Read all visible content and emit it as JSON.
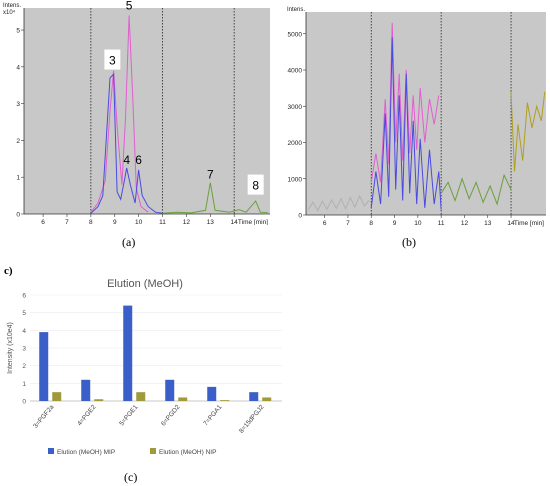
{
  "chart_data": [
    {
      "panel": "(a)",
      "type": "line",
      "y_unit_label": "Intens.",
      "y_scale_label": "x10⁴",
      "y_ticks": [
        0,
        1,
        2,
        3,
        4,
        5
      ],
      "ylim": [
        0,
        5.6
      ],
      "x_tick_labels": [
        "6",
        "7",
        "8",
        "9",
        "10",
        "11",
        "12",
        "13",
        "14"
      ],
      "x_axis_label": "Time [min]",
      "xlim": [
        5.2,
        15.5
      ],
      "grid_dividers_x": [
        8,
        11,
        14
      ],
      "peak_labels": [
        {
          "label": "3",
          "x": 8.9,
          "y": 3.9,
          "boxed": true
        },
        {
          "label": "5",
          "x": 9.6,
          "y": 5.4,
          "boxed": false
        },
        {
          "label": "4",
          "x": 9.5,
          "y": 1.2,
          "boxed": false
        },
        {
          "label": "6",
          "x": 10.0,
          "y": 1.2,
          "boxed": false
        },
        {
          "label": "7",
          "x": 13.0,
          "y": 0.8,
          "boxed": false
        },
        {
          "label": "8",
          "x": 14.9,
          "y": 0.5,
          "boxed": true
        }
      ],
      "series": [
        {
          "color": "#e05fd0",
          "points": [
            [
              8.0,
              0.05
            ],
            [
              8.3,
              0.3
            ],
            [
              8.6,
              0.9
            ],
            [
              8.8,
              2.8
            ],
            [
              8.95,
              3.9
            ],
            [
              9.1,
              2.4
            ],
            [
              9.3,
              0.8
            ],
            [
              9.45,
              2.6
            ],
            [
              9.6,
              5.4
            ],
            [
              9.75,
              3.2
            ],
            [
              9.9,
              0.7
            ],
            [
              10.1,
              0.2
            ],
            [
              10.4,
              0.05
            ]
          ]
        },
        {
          "color": "#4a4ae0",
          "points": [
            [
              8.0,
              0.02
            ],
            [
              8.3,
              0.2
            ],
            [
              8.5,
              0.5
            ],
            [
              8.8,
              3.7
            ],
            [
              8.95,
              3.8
            ],
            [
              9.1,
              0.6
            ],
            [
              9.25,
              0.4
            ],
            [
              9.4,
              0.9
            ],
            [
              9.5,
              1.25
            ],
            [
              9.65,
              0.8
            ],
            [
              9.85,
              0.3
            ],
            [
              10.0,
              1.2
            ],
            [
              10.15,
              0.5
            ],
            [
              10.4,
              0.2
            ],
            [
              10.7,
              0.05
            ],
            [
              11.0,
              0.02
            ]
          ]
        },
        {
          "color": "#6aa03c",
          "points": [
            [
              11.0,
              0.02
            ],
            [
              11.6,
              0.05
            ],
            [
              12.2,
              0.03
            ],
            [
              12.8,
              0.1
            ],
            [
              13.0,
              0.85
            ],
            [
              13.2,
              0.1
            ],
            [
              13.8,
              0.05
            ],
            [
              14.2,
              0.12
            ],
            [
              14.5,
              0.05
            ],
            [
              14.9,
              0.35
            ],
            [
              15.1,
              0.05
            ],
            [
              15.4,
              0.04
            ]
          ]
        }
      ]
    },
    {
      "panel": "(b)",
      "type": "line",
      "y_unit_label": "Intens.",
      "y_ticks": [
        0,
        1000,
        2000,
        3000,
        4000,
        5000
      ],
      "ylim": [
        0,
        5600
      ],
      "x_tick_labels": [
        "6",
        "7",
        "8",
        "9",
        "10",
        "11",
        "12",
        "13",
        "14"
      ],
      "x_axis_label": "Time [min]",
      "xlim": [
        5.2,
        15.5
      ],
      "grid_dividers_x": [
        8,
        11,
        14
      ],
      "series": [
        {
          "color": "#b0b0b0",
          "points": [
            [
              5.3,
              150
            ],
            [
              5.5,
              350
            ],
            [
              5.7,
              120
            ],
            [
              5.9,
              380
            ],
            [
              6.1,
              160
            ],
            [
              6.3,
              420
            ],
            [
              6.5,
              180
            ],
            [
              6.7,
              450
            ],
            [
              6.9,
              170
            ],
            [
              7.1,
              480
            ],
            [
              7.3,
              220
            ],
            [
              7.5,
              530
            ],
            [
              7.7,
              250
            ],
            [
              7.9,
              400
            ]
          ]
        },
        {
          "color": "#e05fd0",
          "points": [
            [
              8.0,
              900
            ],
            [
              8.2,
              1700
            ],
            [
              8.4,
              900
            ],
            [
              8.6,
              3200
            ],
            [
              8.75,
              1400
            ],
            [
              8.9,
              5300
            ],
            [
              9.05,
              2000
            ],
            [
              9.2,
              3900
            ],
            [
              9.35,
              1500
            ],
            [
              9.5,
              4000
            ],
            [
              9.65,
              1700
            ],
            [
              9.8,
              3300
            ],
            [
              9.95,
              1800
            ],
            [
              10.1,
              3500
            ],
            [
              10.3,
              2000
            ],
            [
              10.5,
              3200
            ],
            [
              10.7,
              2500
            ],
            [
              10.9,
              3300
            ]
          ]
        },
        {
          "color": "#4a4ae0",
          "points": [
            [
              8.0,
              200
            ],
            [
              8.2,
              1200
            ],
            [
              8.4,
              300
            ],
            [
              8.6,
              2800
            ],
            [
              8.75,
              500
            ],
            [
              8.9,
              4900
            ],
            [
              9.05,
              700
            ],
            [
              9.2,
              3300
            ],
            [
              9.35,
              400
            ],
            [
              9.5,
              3900
            ],
            [
              9.65,
              600
            ],
            [
              9.8,
              2600
            ],
            [
              9.95,
              300
            ],
            [
              10.1,
              2100
            ],
            [
              10.3,
              200
            ],
            [
              10.5,
              1800
            ],
            [
              10.7,
              300
            ],
            [
              10.9,
              1200
            ],
            [
              11.0,
              150
            ]
          ]
        },
        {
          "color": "#6aa03c",
          "points": [
            [
              11.0,
              600
            ],
            [
              11.3,
              900
            ],
            [
              11.6,
              400
            ],
            [
              11.9,
              1000
            ],
            [
              12.2,
              450
            ],
            [
              12.5,
              900
            ],
            [
              12.8,
              350
            ],
            [
              13.1,
              800
            ],
            [
              13.4,
              300
            ],
            [
              13.7,
              1100
            ],
            [
              14.0,
              700
            ]
          ]
        },
        {
          "color": "#b0a020",
          "points": [
            [
              14.0,
              3400
            ],
            [
              14.15,
              1200
            ],
            [
              14.3,
              2500
            ],
            [
              14.5,
              1500
            ],
            [
              14.7,
              3100
            ],
            [
              14.9,
              2400
            ],
            [
              15.1,
              3000
            ],
            [
              15.3,
              2600
            ],
            [
              15.45,
              3400
            ]
          ]
        }
      ]
    },
    {
      "panel": "(c)",
      "type": "bar",
      "title": "Elution (MeOH)",
      "ylabel": "Intensity (x10e4)",
      "ylim": [
        0,
        6
      ],
      "y_ticks": [
        0,
        1,
        2,
        3,
        4,
        5,
        6
      ],
      "categories": [
        "3=PGF2a",
        "4=PGE2",
        "5=PGE1",
        "6=PGD2",
        "7=PGA1",
        "8=15dPGJ2"
      ],
      "series": [
        {
          "name": "Elution (MeOH) MIP",
          "values": [
            3.9,
            1.2,
            5.4,
            1.2,
            0.8,
            0.5
          ]
        },
        {
          "name": "Elution (MeOH) NIP",
          "values": [
            0.5,
            0.1,
            0.5,
            0.2,
            0.05,
            0.2
          ]
        }
      ],
      "colors": {
        "mip": "#3b5fc8",
        "nip": "#a09a3c"
      },
      "legend_position": "bottom"
    }
  ],
  "labels": {
    "panel_a": "(a)",
    "panel_b": "(b)",
    "panel_c_side": "c)",
    "panel_c": "(c)"
  }
}
